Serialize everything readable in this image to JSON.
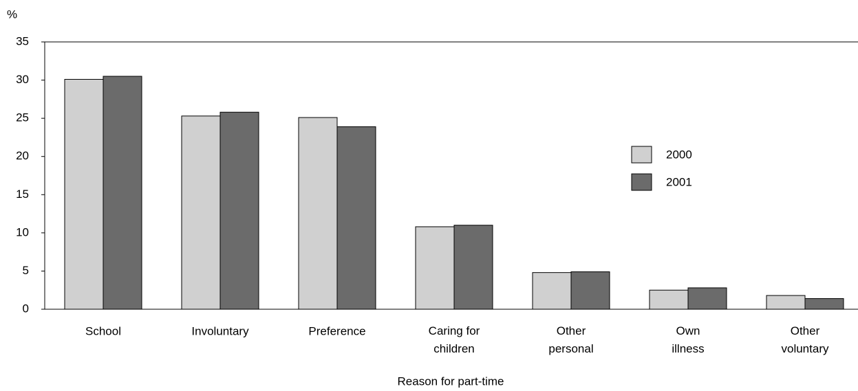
{
  "chart_data": {
    "type": "bar",
    "y_label": "%",
    "x_label": "Reason for part-time",
    "categories": [
      "School",
      "Involuntary",
      "Preference",
      "Caring for\nchildren",
      "Other\npersonal",
      "Own\nillness",
      "Other\nvoluntary"
    ],
    "series": [
      {
        "name": "2000",
        "color": "#d0d0d0",
        "values": [
          30.1,
          25.3,
          25.1,
          10.8,
          4.8,
          2.5,
          1.8
        ]
      },
      {
        "name": "2001",
        "color": "#6b6b6b",
        "values": [
          30.5,
          25.8,
          23.9,
          11.0,
          4.9,
          2.8,
          1.4
        ]
      }
    ],
    "ylim": [
      0,
      35
    ],
    "yticks": [
      0,
      5,
      10,
      15,
      20,
      25,
      30,
      35
    ],
    "grid": false,
    "legend": "right"
  }
}
